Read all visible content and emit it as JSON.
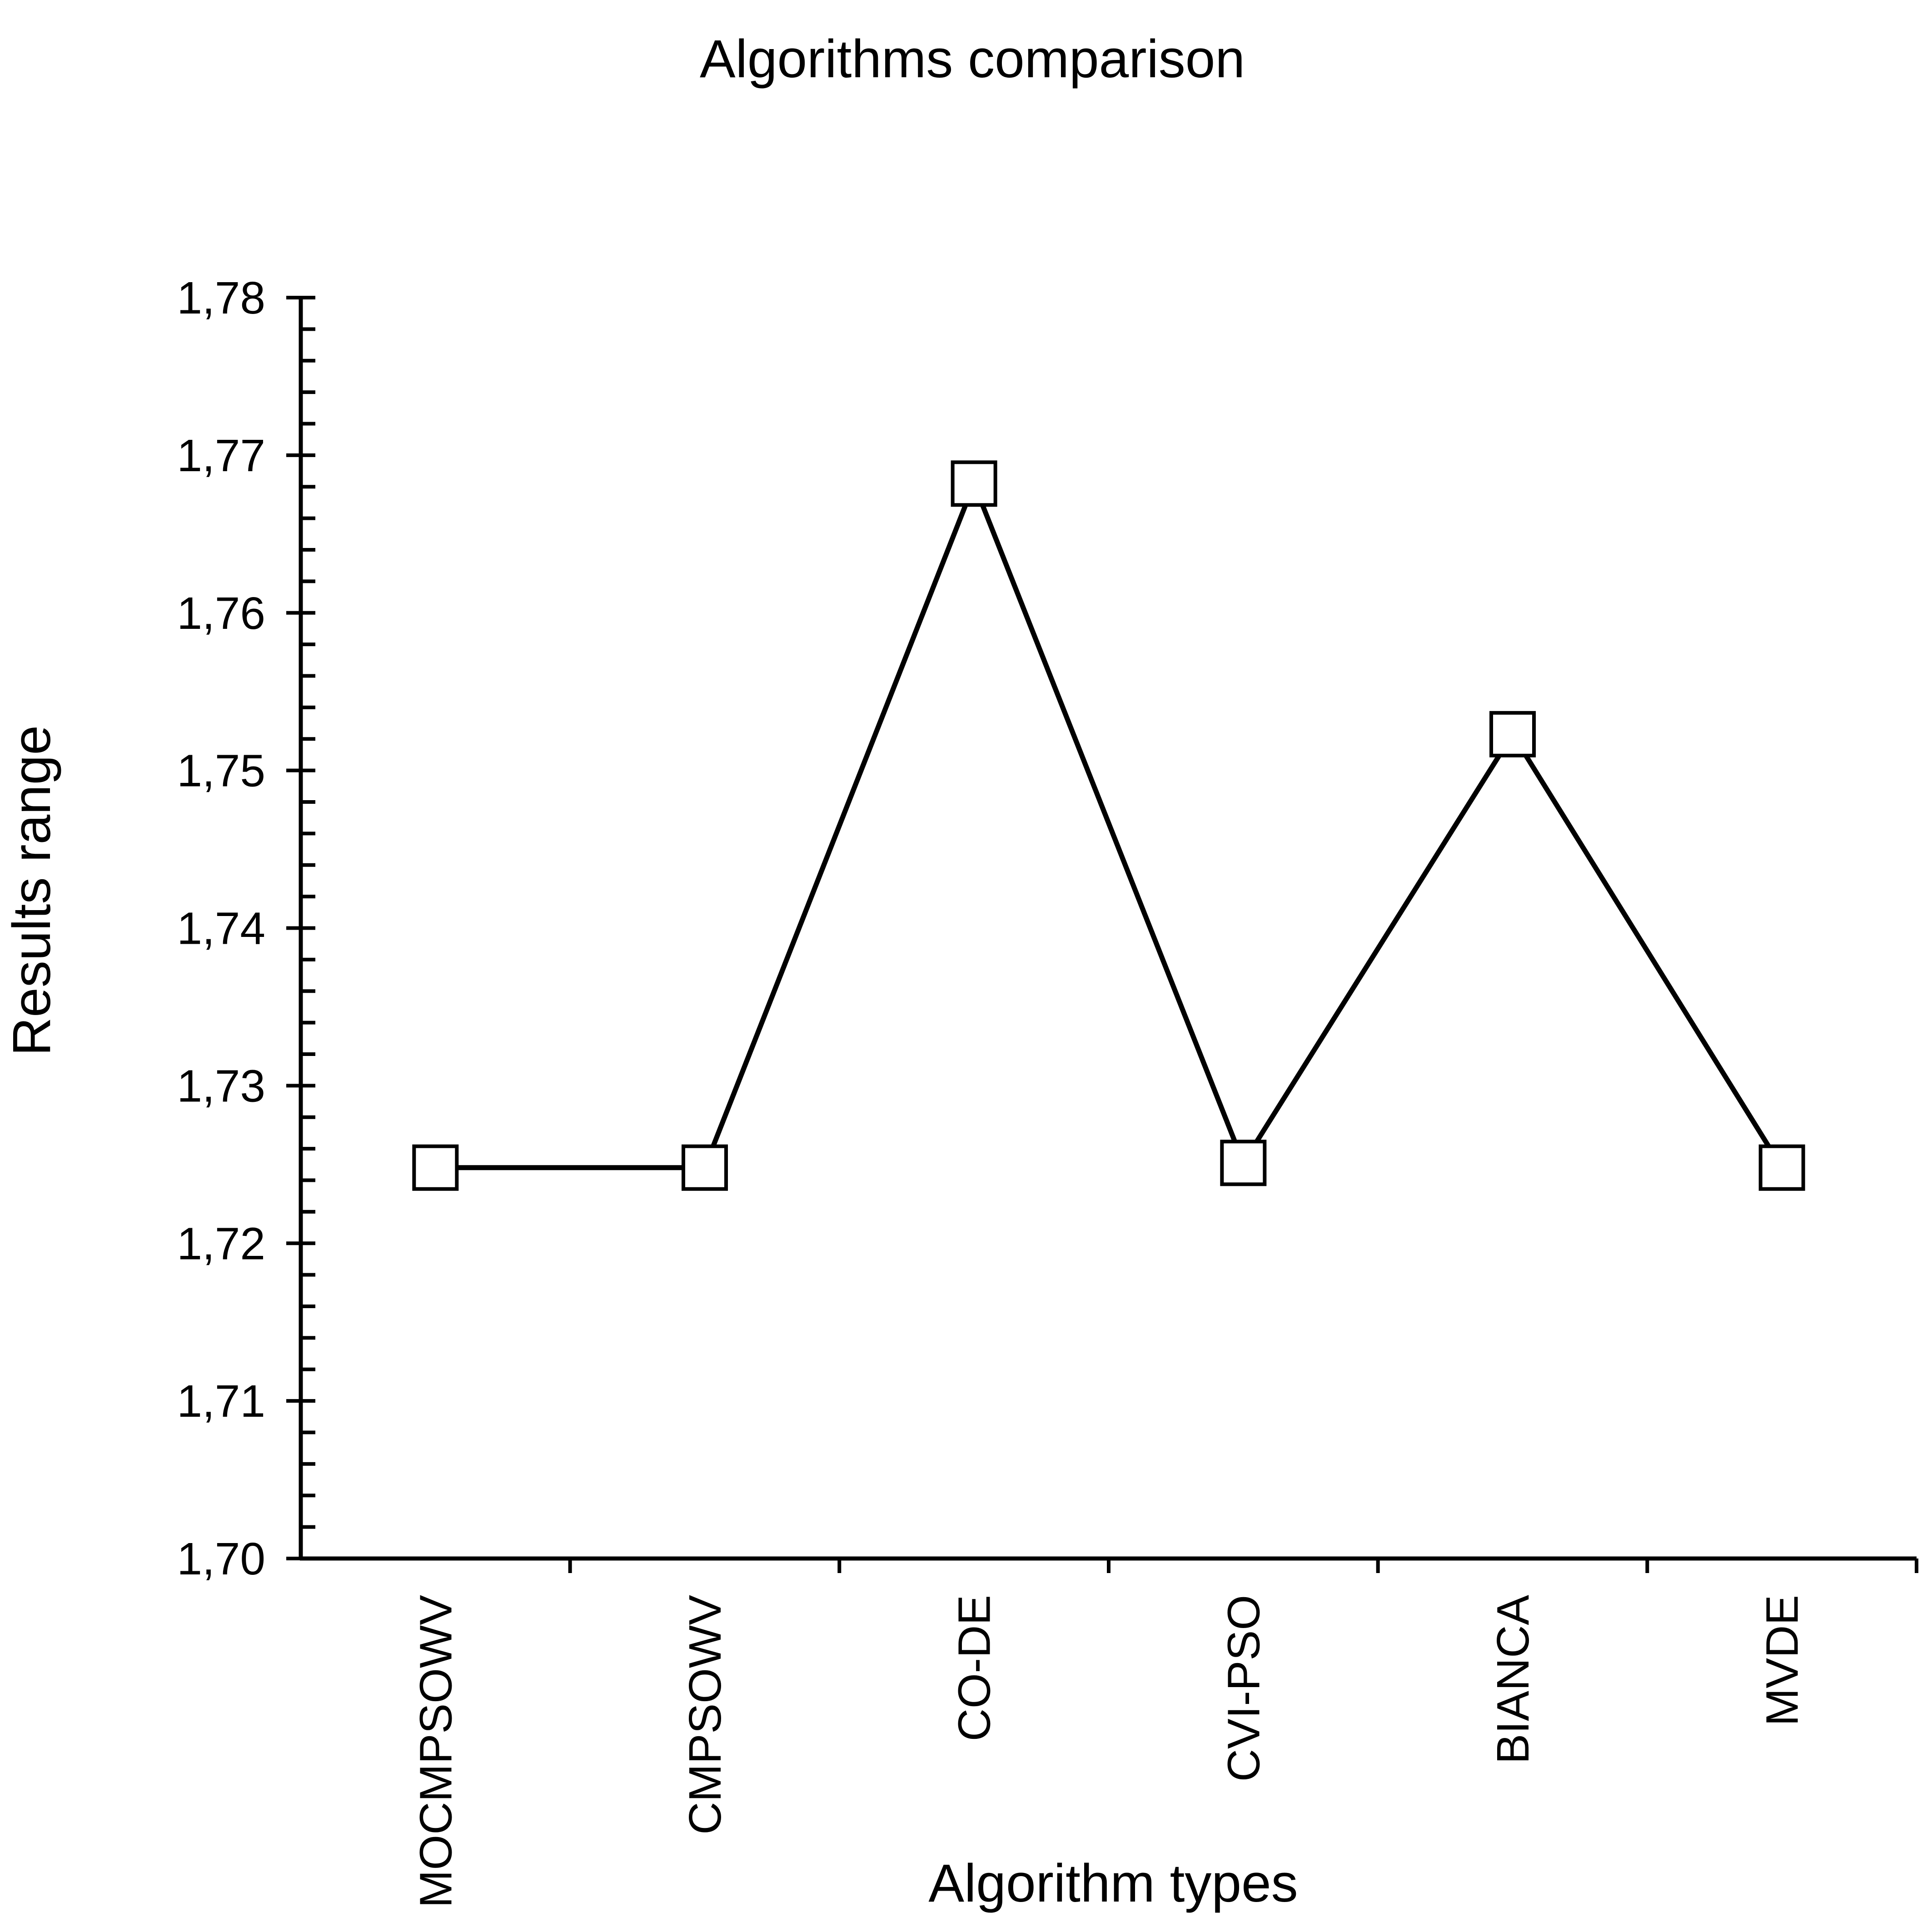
{
  "chart_data": {
    "type": "line",
    "title": "Algorithms comparison",
    "xlabel": "Algorithm types",
    "ylabel": "Results range",
    "categories": [
      "MOCMPSOWV",
      "CMPSOWV",
      "CO-DE",
      "CVI-PSO",
      "BIANCA",
      "MVDE"
    ],
    "series": [
      {
        "values": [
          1.7248,
          1.7248,
          1.7682,
          1.7251,
          1.7523,
          1.7248
        ]
      }
    ],
    "ylim": [
      1.7,
      1.78
    ],
    "y_ticks": [
      "1,70",
      "1,71",
      "1,72",
      "1,73",
      "1,74",
      "1,75",
      "1,76",
      "1,77",
      "1,78"
    ],
    "y_minor_ticks_per_major": 5,
    "marker": "open-square",
    "line_color": "#000000",
    "marker_fill": "#ffffff",
    "grid": false,
    "legend": "none"
  }
}
